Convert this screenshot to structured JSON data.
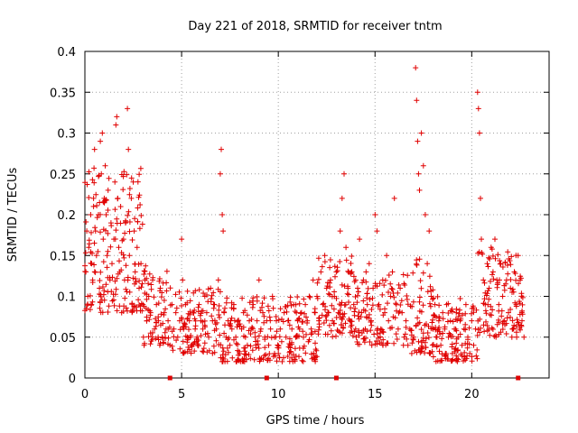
{
  "chart_data": {
    "type": "scatter",
    "title": "Day 221 of 2018, SRMTID for receiver tntm",
    "xlabel": "GPS time / hours",
    "ylabel": "SRMTID / TECUs",
    "xlim": [
      0,
      24
    ],
    "ylim": [
      0,
      0.4
    ],
    "xticks": [
      0,
      5,
      10,
      15,
      20
    ],
    "xtick_labels": [
      "0",
      "5",
      "10",
      "15",
      "20"
    ],
    "yticks": [
      0,
      0.05,
      0.1,
      0.15,
      0.2,
      0.25,
      0.3,
      0.35,
      0.4
    ],
    "ytick_labels": [
      "0",
      "0.05",
      "0.1",
      "0.15",
      "0.2",
      "0.25",
      "0.3",
      "0.35",
      "0.4"
    ],
    "grid": true,
    "marker": "plus",
    "color": "#e00000",
    "series": [
      {
        "name": "SRMTID",
        "points": [
          [
            0.05,
            0.13
          ],
          [
            0.1,
            0.18
          ],
          [
            0.15,
            0.1
          ],
          [
            0.2,
            0.16
          ],
          [
            0.3,
            0.2
          ],
          [
            0.35,
            0.14
          ],
          [
            0.4,
            0.12
          ],
          [
            0.45,
            0.22
          ],
          [
            0.5,
            0.28
          ],
          [
            0.55,
            0.18
          ],
          [
            0.6,
            0.15
          ],
          [
            0.7,
            0.2
          ],
          [
            0.75,
            0.11
          ],
          [
            0.8,
            0.29
          ],
          [
            0.85,
            0.25
          ],
          [
            0.9,
            0.3
          ],
          [
            0.95,
            0.17
          ],
          [
            1.0,
            0.22
          ],
          [
            1.05,
            0.26
          ],
          [
            1.1,
            0.2
          ],
          [
            1.15,
            0.15
          ],
          [
            1.2,
            0.23
          ],
          [
            1.3,
            0.12
          ],
          [
            1.35,
            0.19
          ],
          [
            1.4,
            0.14
          ],
          [
            1.5,
            0.17
          ],
          [
            1.55,
            0.24
          ],
          [
            1.6,
            0.31
          ],
          [
            1.65,
            0.32
          ],
          [
            1.7,
            0.22
          ],
          [
            1.75,
            0.16
          ],
          [
            1.8,
            0.13
          ],
          [
            1.85,
            0.21
          ],
          [
            1.9,
            0.08
          ],
          [
            2.0,
            0.17
          ],
          [
            2.05,
            0.12
          ],
          [
            2.1,
            0.19
          ],
          [
            2.2,
            0.33
          ],
          [
            2.25,
            0.28
          ],
          [
            2.3,
            0.15
          ],
          [
            2.4,
            0.22
          ],
          [
            2.5,
            0.24
          ],
          [
            2.55,
            0.18
          ],
          [
            2.6,
            0.13
          ],
          [
            2.7,
            0.16
          ],
          [
            2.8,
            0.11
          ],
          [
            2.9,
            0.14
          ],
          [
            3.0,
            0.09
          ],
          [
            3.1,
            0.12
          ],
          [
            3.2,
            0.07
          ],
          [
            3.3,
            0.1
          ],
          [
            3.4,
            0.08
          ],
          [
            3.5,
            0.12
          ],
          [
            3.6,
            0.06
          ],
          [
            3.7,
            0.09
          ],
          [
            3.8,
            0.07
          ],
          [
            3.9,
            0.11
          ],
          [
            4.0,
            0.05
          ],
          [
            4.1,
            0.08
          ],
          [
            4.2,
            0.06
          ],
          [
            4.3,
            0.07
          ],
          [
            4.4,
            0.04
          ],
          [
            4.5,
            0.09
          ],
          [
            4.6,
            0.06
          ],
          [
            4.7,
            0.08
          ],
          [
            4.8,
            0.05
          ],
          [
            4.9,
            0.07
          ],
          [
            5.0,
            0.17
          ],
          [
            5.05,
            0.12
          ],
          [
            5.1,
            0.06
          ],
          [
            5.2,
            0.09
          ],
          [
            5.3,
            0.05
          ],
          [
            5.4,
            0.07
          ],
          [
            5.5,
            0.04
          ],
          [
            5.6,
            0.08
          ],
          [
            5.7,
            0.06
          ],
          [
            5.8,
            0.05
          ],
          [
            5.9,
            0.09
          ],
          [
            6.0,
            0.07
          ],
          [
            6.1,
            0.06
          ],
          [
            6.2,
            0.1
          ],
          [
            6.3,
            0.08
          ],
          [
            6.4,
            0.05
          ],
          [
            6.5,
            0.11
          ],
          [
            6.6,
            0.07
          ],
          [
            6.7,
            0.09
          ],
          [
            6.8,
            0.06
          ],
          [
            6.9,
            0.12
          ],
          [
            7.0,
            0.25
          ],
          [
            7.05,
            0.28
          ],
          [
            7.1,
            0.2
          ],
          [
            7.15,
            0.18
          ],
          [
            7.2,
            0.08
          ],
          [
            7.3,
            0.05
          ],
          [
            7.4,
            0.07
          ],
          [
            7.5,
            0.04
          ],
          [
            7.6,
            0.06
          ],
          [
            7.7,
            0.09
          ],
          [
            7.8,
            0.05
          ],
          [
            7.9,
            0.07
          ],
          [
            8.0,
            0.03
          ],
          [
            8.1,
            0.06
          ],
          [
            8.2,
            0.08
          ],
          [
            8.3,
            0.05
          ],
          [
            8.4,
            0.04
          ],
          [
            8.5,
            0.07
          ],
          [
            8.6,
            0.06
          ],
          [
            8.7,
            0.09
          ],
          [
            8.8,
            0.05
          ],
          [
            8.9,
            0.07
          ],
          [
            9.0,
            0.12
          ],
          [
            9.1,
            0.06
          ],
          [
            9.2,
            0.08
          ],
          [
            9.3,
            0.05
          ],
          [
            9.4,
            0.07
          ],
          [
            9.5,
            0.04
          ],
          [
            9.6,
            0.06
          ],
          [
            9.7,
            0.1
          ],
          [
            9.8,
            0.05
          ],
          [
            9.9,
            0.07
          ],
          [
            10.0,
            0.03
          ],
          [
            10.1,
            0.06
          ],
          [
            10.2,
            0.02
          ],
          [
            10.3,
            0.08
          ],
          [
            10.4,
            0.05
          ],
          [
            10.5,
            0.07
          ],
          [
            10.6,
            0.04
          ],
          [
            10.7,
            0.06
          ],
          [
            10.8,
            0.09
          ],
          [
            10.9,
            0.05
          ],
          [
            11.0,
            0.07
          ],
          [
            11.1,
            0.06
          ],
          [
            11.2,
            0.08
          ],
          [
            11.3,
            0.05
          ],
          [
            11.4,
            0.09
          ],
          [
            11.5,
            0.07
          ],
          [
            11.6,
            0.1
          ],
          [
            11.7,
            0.06
          ],
          [
            11.8,
            0.12
          ],
          [
            11.9,
            0.08
          ],
          [
            12.0,
            0.1
          ],
          [
            12.1,
            0.07
          ],
          [
            12.2,
            0.13
          ],
          [
            12.3,
            0.09
          ],
          [
            12.4,
            0.15
          ],
          [
            12.5,
            0.11
          ],
          [
            12.6,
            0.08
          ],
          [
            12.7,
            0.12
          ],
          [
            12.8,
            0.07
          ],
          [
            12.9,
            0.1
          ],
          [
            13.0,
            0.13
          ],
          [
            13.1,
            0.08
          ],
          [
            13.2,
            0.18
          ],
          [
            13.3,
            0.22
          ],
          [
            13.4,
            0.25
          ],
          [
            13.5,
            0.16
          ],
          [
            13.6,
            0.11
          ],
          [
            13.7,
            0.07
          ],
          [
            13.8,
            0.13
          ],
          [
            13.9,
            0.09
          ],
          [
            14.0,
            0.06
          ],
          [
            14.1,
            0.11
          ],
          [
            14.2,
            0.17
          ],
          [
            14.3,
            0.08
          ],
          [
            14.4,
            0.12
          ],
          [
            14.5,
            0.06
          ],
          [
            14.6,
            0.09
          ],
          [
            14.7,
            0.14
          ],
          [
            14.8,
            0.07
          ],
          [
            14.9,
            0.11
          ],
          [
            15.0,
            0.2
          ],
          [
            15.1,
            0.18
          ],
          [
            15.2,
            0.09
          ],
          [
            15.3,
            0.06
          ],
          [
            15.4,
            0.12
          ],
          [
            15.5,
            0.08
          ],
          [
            15.6,
            0.15
          ],
          [
            15.7,
            0.07
          ],
          [
            15.8,
            0.1
          ],
          [
            15.9,
            0.13
          ],
          [
            16.0,
            0.22
          ],
          [
            16.1,
            0.09
          ],
          [
            16.2,
            0.06
          ],
          [
            16.3,
            0.11
          ],
          [
            16.4,
            0.08
          ],
          [
            16.5,
            0.05
          ],
          [
            16.6,
            0.07
          ],
          [
            16.7,
            0.04
          ],
          [
            16.8,
            0.06
          ],
          [
            16.9,
            0.03
          ],
          [
            17.0,
            0.05
          ],
          [
            17.1,
            0.38
          ],
          [
            17.15,
            0.34
          ],
          [
            17.2,
            0.29
          ],
          [
            17.25,
            0.25
          ],
          [
            17.3,
            0.23
          ],
          [
            17.4,
            0.3
          ],
          [
            17.5,
            0.26
          ],
          [
            17.6,
            0.2
          ],
          [
            17.7,
            0.14
          ],
          [
            17.8,
            0.18
          ],
          [
            17.9,
            0.1
          ],
          [
            18.0,
            0.06
          ],
          [
            18.1,
            0.09
          ],
          [
            18.2,
            0.05
          ],
          [
            18.3,
            0.07
          ],
          [
            18.4,
            0.04
          ],
          [
            18.5,
            0.08
          ],
          [
            18.6,
            0.06
          ],
          [
            18.7,
            0.09
          ],
          [
            18.8,
            0.05
          ],
          [
            18.9,
            0.07
          ],
          [
            19.0,
            0.03
          ],
          [
            19.1,
            0.06
          ],
          [
            19.2,
            0.08
          ],
          [
            19.3,
            0.05
          ],
          [
            19.4,
            0.07
          ],
          [
            19.5,
            0.04
          ],
          [
            19.6,
            0.06
          ],
          [
            19.7,
            0.09
          ],
          [
            19.8,
            0.05
          ],
          [
            19.9,
            0.03
          ],
          [
            20.0,
            0.07
          ],
          [
            20.1,
            0.04
          ],
          [
            20.2,
            0.06
          ],
          [
            20.3,
            0.35
          ],
          [
            20.35,
            0.33
          ],
          [
            20.4,
            0.3
          ],
          [
            20.45,
            0.22
          ],
          [
            20.5,
            0.17
          ],
          [
            20.6,
            0.12
          ],
          [
            20.7,
            0.09
          ],
          [
            20.8,
            0.14
          ],
          [
            20.9,
            0.11
          ],
          [
            21.0,
            0.16
          ],
          [
            21.1,
            0.13
          ],
          [
            21.2,
            0.17
          ],
          [
            21.3,
            0.12
          ],
          [
            21.4,
            0.09
          ],
          [
            21.5,
            0.14
          ],
          [
            21.6,
            0.1
          ],
          [
            21.7,
            0.07
          ],
          [
            21.8,
            0.12
          ],
          [
            21.9,
            0.08
          ],
          [
            22.0,
            0.11
          ],
          [
            22.1,
            0.06
          ],
          [
            22.2,
            0.13
          ],
          [
            22.3,
            0.09
          ],
          [
            22.4,
            0.15
          ],
          [
            22.5,
            0.12
          ],
          [
            22.6,
            0.07
          ],
          [
            22.7,
            0.05
          ]
        ]
      }
    ],
    "background_density": [
      {
        "x0": 0.0,
        "x1": 3.0,
        "lo": 0.08,
        "hi": 0.26,
        "n": 170
      },
      {
        "x0": 3.0,
        "x1": 4.5,
        "lo": 0.04,
        "hi": 0.14,
        "n": 70
      },
      {
        "x0": 4.5,
        "x1": 7.0,
        "lo": 0.03,
        "hi": 0.11,
        "n": 110
      },
      {
        "x0": 7.0,
        "x1": 10.0,
        "lo": 0.02,
        "hi": 0.1,
        "n": 130
      },
      {
        "x0": 10.0,
        "x1": 12.0,
        "lo": 0.02,
        "hi": 0.1,
        "n": 90
      },
      {
        "x0": 12.0,
        "x1": 14.0,
        "lo": 0.05,
        "hi": 0.15,
        "n": 100
      },
      {
        "x0": 14.0,
        "x1": 17.0,
        "lo": 0.04,
        "hi": 0.13,
        "n": 120
      },
      {
        "x0": 17.0,
        "x1": 18.0,
        "lo": 0.03,
        "hi": 0.16,
        "n": 60
      },
      {
        "x0": 18.0,
        "x1": 20.3,
        "lo": 0.02,
        "hi": 0.1,
        "n": 110
      },
      {
        "x0": 20.3,
        "x1": 22.8,
        "lo": 0.05,
        "hi": 0.16,
        "n": 120
      }
    ],
    "baseline_markers": [
      4.4,
      9.4,
      13.0,
      22.4
    ]
  }
}
